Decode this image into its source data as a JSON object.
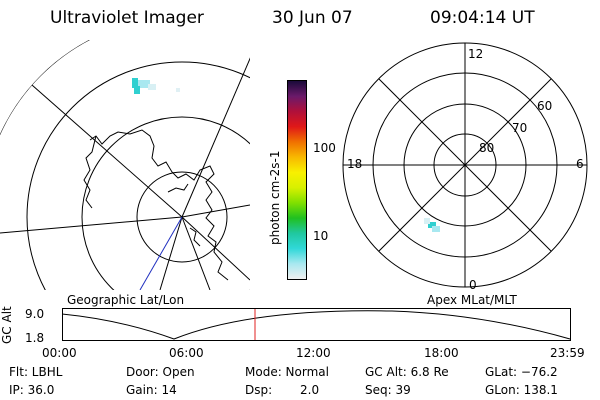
{
  "header": {
    "title": "Ultraviolet Imager",
    "date": "30 Jun 07",
    "time": "09:04:14 UT"
  },
  "colorbar": {
    "label": "photon cm-2s-1",
    "ticks": [
      "100",
      "10"
    ],
    "colors": [
      "#1a0a3a",
      "#6a1a6a",
      "#b0103a",
      "#e01818",
      "#f07000",
      "#f8b800",
      "#f8f000",
      "#d8f000",
      "#80e000",
      "#20c020",
      "#20c8a0",
      "#30d8d8",
      "#a8e8f0",
      "#f0f0f0"
    ]
  },
  "left_map": {
    "caption": "Geographic Lat/Lon"
  },
  "right_map": {
    "caption": "Apex MLat/MLT",
    "mlt_labels": {
      "top": "12",
      "left": "18",
      "right": "6",
      "bottom": "0"
    },
    "lat_labels": [
      "60",
      "70",
      "80"
    ]
  },
  "altitude_plot": {
    "ylabel": "GC Alt",
    "y_ticks": [
      "9.0",
      "1.8"
    ],
    "x_ticks": [
      "00:00",
      "06:00",
      "12:00",
      "18:00",
      "23:59"
    ],
    "current_marker_color": "#e02020"
  },
  "info": {
    "filter": "Flt: LBHL",
    "door": "Door: Open",
    "mode": "Mode: Normal",
    "gc_alt": "GC Alt: 6.8 Re",
    "glat": "GLat: −76.2",
    "ip": "IP: 36.0",
    "gain": "Gain: 14",
    "dsp_label": "Dsp:",
    "dsp_value": "2.0",
    "seq": "Seq: 39",
    "glon": "GLon: 138.1"
  }
}
